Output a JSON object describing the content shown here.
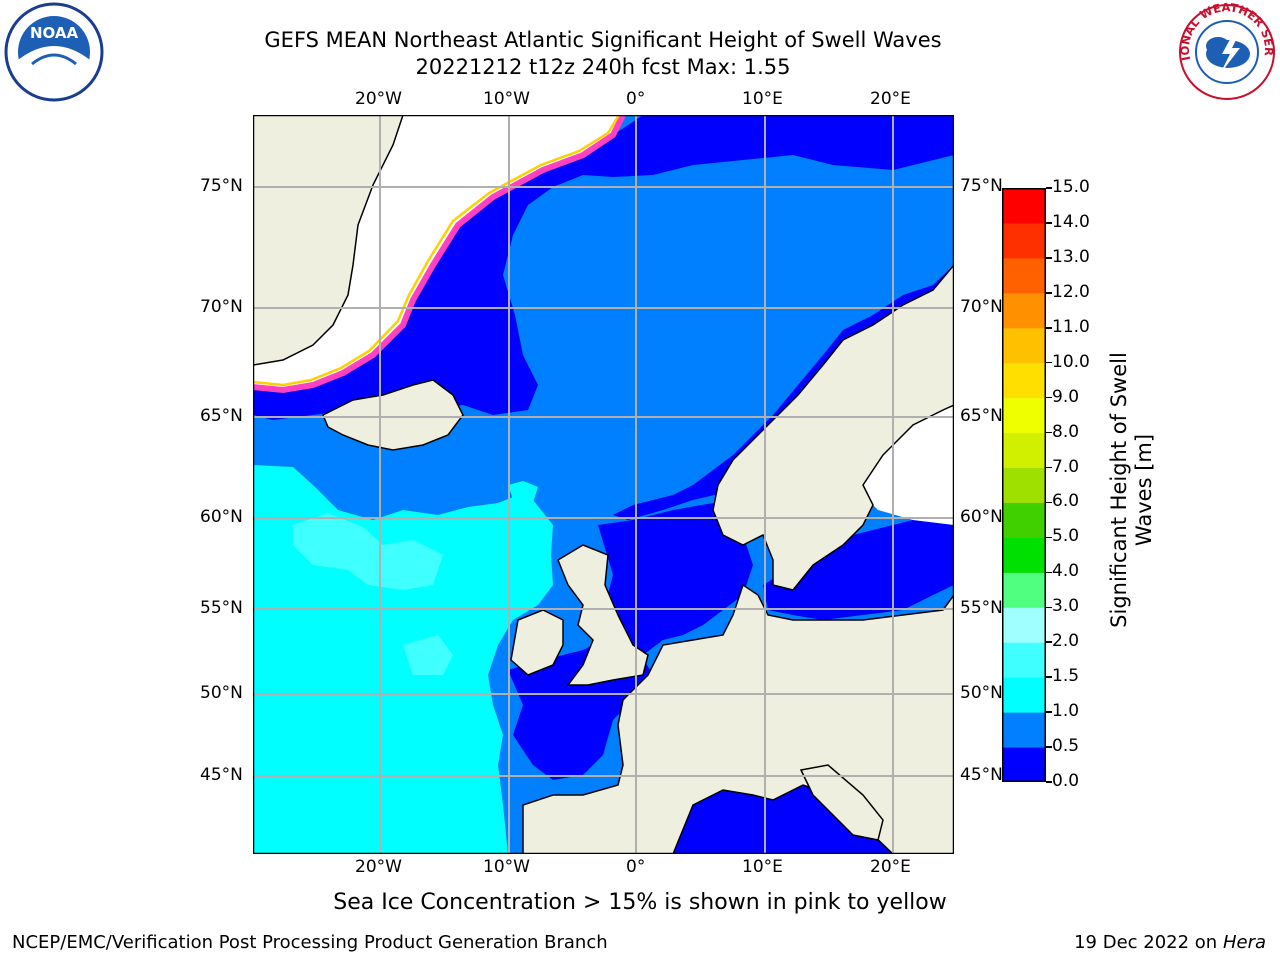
{
  "title_line1": "GEFS MEAN Northeast Atlantic Significant Height of Swell Waves",
  "title_line2": "20221212 t12z 240h fcst   Max: 1.55",
  "map": {
    "lon_labels": [
      "20°W",
      "10°W",
      "0°",
      "10°E",
      "20°E"
    ],
    "lat_labels": [
      "75°N",
      "70°N",
      "65°N",
      "60°N",
      "55°N",
      "50°N",
      "45°N"
    ]
  },
  "colorbar": {
    "label": "Significant Height of Swell Waves [m]",
    "ticks": [
      "15.0",
      "14.0",
      "13.0",
      "12.0",
      "11.0",
      "10.0",
      "9.0",
      "8.0",
      "7.0",
      "6.0",
      "5.0",
      "4.0",
      "3.0",
      "2.0",
      "1.5",
      "1.0",
      "0.5",
      "0.0"
    ],
    "colors": [
      "#0000ff",
      "#0080ff",
      "#00ffff",
      "#40ffff",
      "#a0ffff",
      "#50ff80",
      "#00e000",
      "#40d000",
      "#a0e000",
      "#d0f000",
      "#f0ff00",
      "#ffdf00",
      "#ffc000",
      "#ff9000",
      "#ff6000",
      "#ff3000",
      "#ff0000"
    ]
  },
  "caption": "Sea Ice Concentration > 15% is shown in pink to yellow",
  "footer_left": "NCEP/EMC/Verification Post Processing Product Generation Branch",
  "footer_date": "19 Dec 2022 on",
  "footer_host": "Hera",
  "logos": {
    "noaa_text": "NOAA",
    "nws_text": "NATIONAL WEATHER SERVICE"
  }
}
